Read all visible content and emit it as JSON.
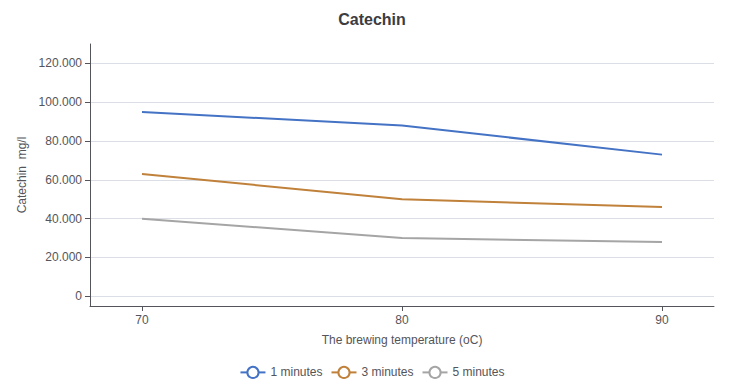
{
  "chart_data": {
    "type": "line",
    "title": "Catechin",
    "xlabel": "The brewing temperature (oC)",
    "ylabel": "Catechin  mg/l",
    "x": [
      70,
      80,
      90
    ],
    "series": [
      {
        "name": "1 minutes",
        "color": "#4472C4",
        "values": [
          95000,
          88000,
          73000
        ]
      },
      {
        "name": "3 minutes",
        "color": "#C0813A",
        "values": [
          63000,
          50000,
          46000
        ]
      },
      {
        "name": "5 minutes",
        "color": "#A5A5A5",
        "values": [
          40000,
          30000,
          28000
        ]
      }
    ],
    "xlim": [
      68,
      92
    ],
    "xticks": [
      70,
      80,
      90
    ],
    "ylim": [
      -5000,
      130000
    ],
    "yticks": [
      0,
      {
        "value": 20000,
        "label": "20.000"
      },
      {
        "value": 40000,
        "label": "40.000"
      },
      {
        "value": 60000,
        "label": "60.000"
      },
      {
        "value": 80000,
        "label": "80.000"
      },
      {
        "value": 100000,
        "label": "100.000"
      },
      {
        "value": 120000,
        "label": "120.000"
      }
    ],
    "grid": true,
    "legend": "bottom"
  }
}
